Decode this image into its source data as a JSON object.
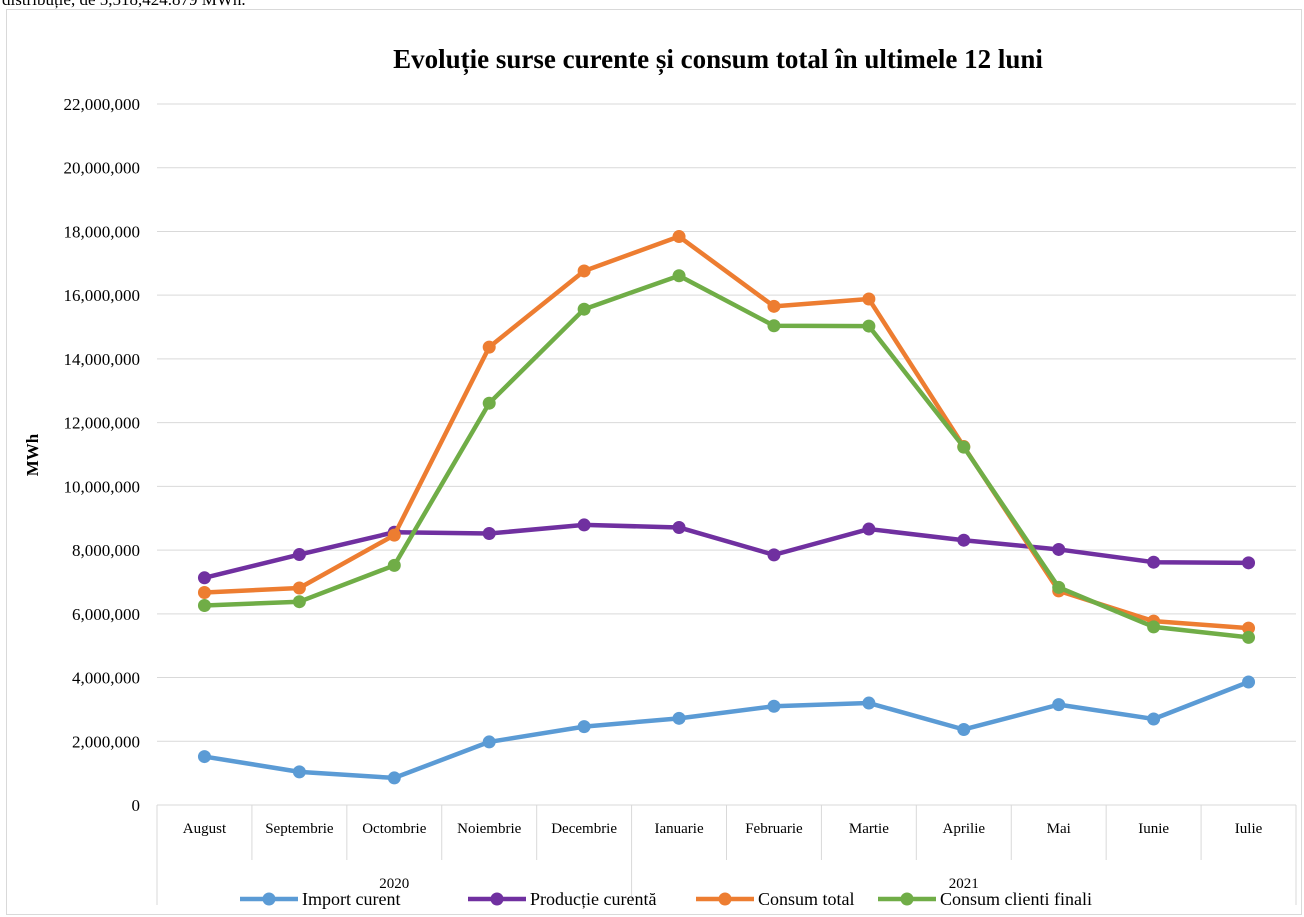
{
  "page": {
    "top_text": "distribuție, de 5,518,424.879 MWh."
  },
  "colors": {
    "import": "#5b9bd5",
    "productie": "#7030a0",
    "consum_total": "#ed7d31",
    "consum_clienti": "#70ad47",
    "grid": "#d9d9d9"
  },
  "chart_data": {
    "type": "line",
    "title": "Evoluție surse curente și consum total în ultimele 12 luni",
    "ylabel": "MWh",
    "xlabel": "",
    "ylim": [
      0,
      22000000
    ],
    "y_ticks": [
      0,
      2000000,
      4000000,
      6000000,
      8000000,
      10000000,
      12000000,
      14000000,
      16000000,
      18000000,
      20000000,
      22000000
    ],
    "y_tick_labels": [
      "0",
      "2,000,000",
      "4,000,000",
      "6,000,000",
      "8,000,000",
      "10,000,000",
      "12,000,000",
      "14,000,000",
      "16,000,000",
      "18,000,000",
      "20,000,000",
      "22,000,000"
    ],
    "categories": [
      "August",
      "Septembrie",
      "Octombrie",
      "Noiembrie",
      "Decembrie",
      "Ianuarie",
      "Februarie",
      "Martie",
      "Aprilie",
      "Mai",
      "Iunie",
      "Iulie"
    ],
    "groups": [
      {
        "label": "2020",
        "count": 5
      },
      {
        "label": "2021",
        "count": 7
      }
    ],
    "grid": true,
    "legend_position": "bottom",
    "series": [
      {
        "name": "Import curent",
        "color": "#5b9bd5",
        "values": [
          1520000,
          1040000,
          850000,
          1980000,
          2460000,
          2720000,
          3100000,
          3200000,
          2370000,
          3150000,
          2700000,
          3860000
        ]
      },
      {
        "name": "Producție curentă",
        "color": "#7030a0",
        "values": [
          7130000,
          7860000,
          8560000,
          8520000,
          8790000,
          8710000,
          7850000,
          8660000,
          8310000,
          8020000,
          7620000,
          7600000
        ]
      },
      {
        "name": "Consum total",
        "color": "#ed7d31",
        "values": [
          6670000,
          6810000,
          8470000,
          14370000,
          16760000,
          17840000,
          15650000,
          15880000,
          11250000,
          6720000,
          5770000,
          5550000
        ]
      },
      {
        "name": "Consum clienti finali",
        "color": "#70ad47",
        "values": [
          6260000,
          6380000,
          7520000,
          12610000,
          15560000,
          16610000,
          15040000,
          15030000,
          11230000,
          6830000,
          5590000,
          5260000
        ]
      }
    ]
  }
}
